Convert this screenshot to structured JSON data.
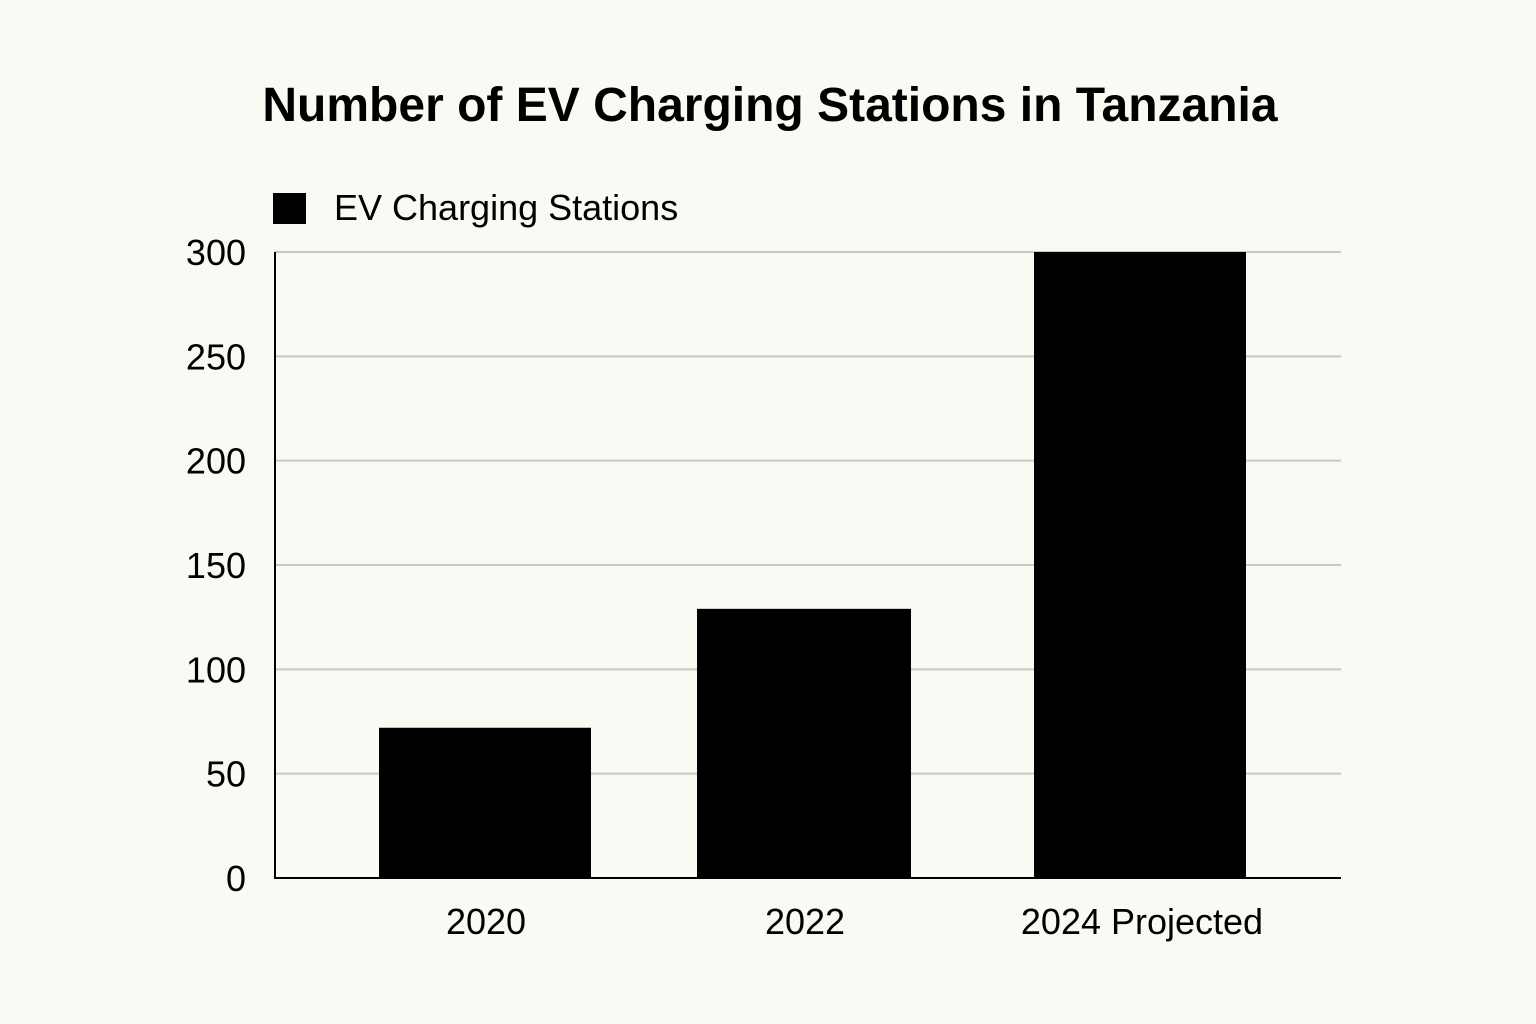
{
  "chart_data": {
    "type": "bar",
    "title": "Number of EV Charging Stations in Tanzania",
    "categories": [
      "2020",
      "2022",
      "2024 Projected"
    ],
    "series": [
      {
        "name": "EV Charging Stations",
        "values": [
          72,
          129,
          300
        ]
      }
    ],
    "ylim": [
      0,
      300
    ],
    "yticks": [
      "0",
      "50",
      "100",
      "150",
      "200",
      "250",
      "300"
    ],
    "xlabel": "",
    "ylabel": "",
    "grid": true,
    "legend": "top-left",
    "colors": {
      "bar": "#000000",
      "grid": "#c8c8c4",
      "axis": "#000000",
      "background": "#faf9f4"
    }
  }
}
